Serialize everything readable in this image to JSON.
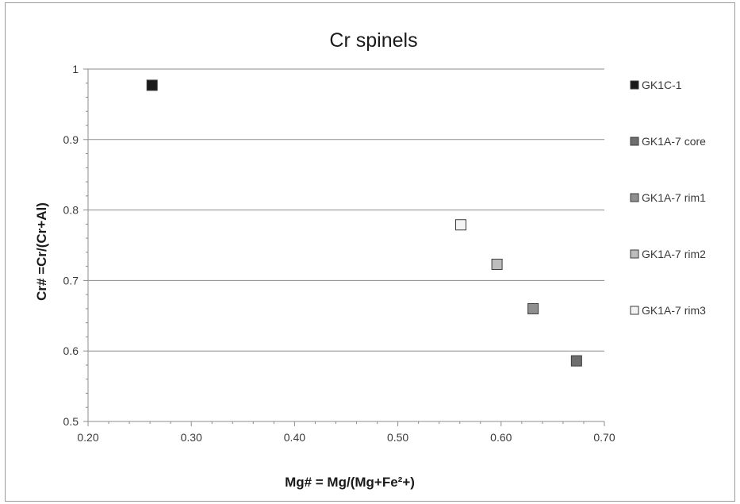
{
  "chart_data": {
    "type": "scatter",
    "title": "Cr spinels",
    "xlabel": "Mg# = Mg/(Mg+Fe²+)",
    "ylabel": "Cr# =Cr/(Cr+Al)",
    "xlim": [
      0.2,
      0.7
    ],
    "ylim": [
      0.5,
      1.0
    ],
    "x_ticks": [
      "0.20",
      "0.30",
      "0.40",
      "0.50",
      "0.60",
      "0.70"
    ],
    "y_ticks": [
      "0.5",
      "0.6",
      "0.7",
      "0.8",
      "0.9",
      "1"
    ],
    "grid": "horizontal",
    "legend_position": "right",
    "series": [
      {
        "name": "GK1C-1",
        "color": "#1a1a1a",
        "x": [
          0.262
        ],
        "y": [
          0.977
        ]
      },
      {
        "name": "GK1A-7 core",
        "color": "#6e6e6e",
        "x": [
          0.673
        ],
        "y": [
          0.586
        ]
      },
      {
        "name": "GK1A-7 rim1",
        "color": "#8f8f8f",
        "x": [
          0.631
        ],
        "y": [
          0.66
        ]
      },
      {
        "name": "GK1A-7 rim2",
        "color": "#bdbdbd",
        "x": [
          0.596
        ],
        "y": [
          0.723
        ]
      },
      {
        "name": "GK1A-7 rim3",
        "color": "#f4f4f4",
        "x": [
          0.561
        ],
        "y": [
          0.779
        ]
      }
    ]
  }
}
